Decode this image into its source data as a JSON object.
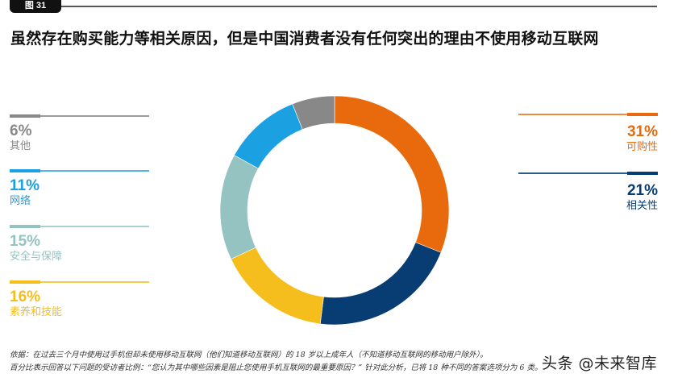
{
  "header": {
    "figure_tag": "图 31",
    "title": "虽然存在购买能力等相关原因，但是中国消费者没有任何突出的理由不使用移动互联网"
  },
  "legend": {
    "left": [
      {
        "pct": "6%",
        "label": "其他",
        "color": "#888888"
      },
      {
        "pct": "11%",
        "label": "网络",
        "color": "#1BA0E2"
      },
      {
        "pct": "15%",
        "label": "安全与保障",
        "color": "#94C3C2"
      },
      {
        "pct": "16%",
        "label": "素养和技能",
        "color": "#F5BE1C"
      }
    ],
    "right": [
      {
        "pct": "31%",
        "label": "可购性",
        "color": "#E96A0C"
      },
      {
        "pct": "21%",
        "label": "相关性",
        "color": "#073D72"
      }
    ]
  },
  "chart_data": {
    "type": "pie",
    "variant": "donut",
    "title": "虽然存在购买能力等相关原因，但是中国消费者没有任何突出的理由不使用移动互联网",
    "categories": [
      "可购性",
      "相关性",
      "素养和技能",
      "安全与保障",
      "网络",
      "其他"
    ],
    "values": [
      31,
      21,
      16,
      15,
      11,
      6
    ],
    "unit": "%",
    "colors": [
      "#E96A0C",
      "#073D72",
      "#F5BE1C",
      "#94C3C2",
      "#1BA0E2",
      "#888888"
    ],
    "start_angle": "12 o'clock, clockwise",
    "legend_position": "left and right sides"
  },
  "footnote": {
    "line1": "依据：在过去三个月中使用过手机但却未使用移动互联网（他们知道移动互联网）的 18 岁以上成年人（不知道移动互联网的移动用户除外）。",
    "line2": "百分比表示回答以下问题的受访者比例：“您认为其中哪些因素是阻止您使用手机互联网的最重要原因？” 针对此分析，已将 18 种不同的答案选项分为 6 类。"
  },
  "watermark": "头条 @未来智库"
}
